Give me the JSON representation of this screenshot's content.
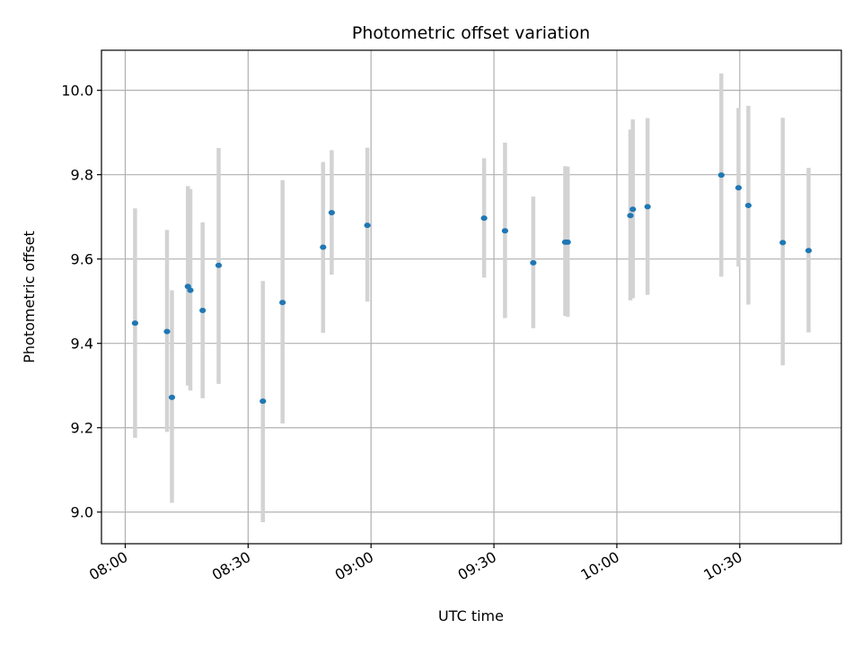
{
  "chart_data": {
    "type": "scatter",
    "title": "Photometric offset variation",
    "xlabel": "UTC time",
    "ylabel": "Photometric offset",
    "xlim_minutes": [
      -5.8,
      174.8
    ],
    "ylim": [
      8.925,
      10.095
    ],
    "grid": true,
    "x_ticks": [
      {
        "minutes": 0,
        "label": "08:00"
      },
      {
        "minutes": 30,
        "label": "08:30"
      },
      {
        "minutes": 60,
        "label": "09:00"
      },
      {
        "minutes": 90,
        "label": "09:30"
      },
      {
        "minutes": 120,
        "label": "10:00"
      },
      {
        "minutes": 150,
        "label": "10:30"
      }
    ],
    "y_ticks": [
      {
        "value": 9.0,
        "label": "9.0"
      },
      {
        "value": 9.2,
        "label": "9.2"
      },
      {
        "value": 9.4,
        "label": "9.4"
      },
      {
        "value": 9.6,
        "label": "9.6"
      },
      {
        "value": 9.8,
        "label": "9.8"
      },
      {
        "value": 10.0,
        "label": "10.0"
      }
    ],
    "marker_color": "#1f77b4",
    "errorbar_color": "#d3d3d3",
    "points": [
      {
        "minutes": 2.4,
        "value": 9.448,
        "low": 9.176,
        "high": 9.72
      },
      {
        "minutes": 10.2,
        "value": 9.428,
        "low": 9.19,
        "high": 9.669
      },
      {
        "minutes": 11.4,
        "value": 9.272,
        "low": 9.022,
        "high": 9.526
      },
      {
        "minutes": 15.3,
        "value": 9.535,
        "low": 9.3,
        "high": 9.773
      },
      {
        "minutes": 15.9,
        "value": 9.526,
        "low": 9.288,
        "high": 9.766
      },
      {
        "minutes": 18.9,
        "value": 9.478,
        "low": 9.27,
        "high": 9.687
      },
      {
        "minutes": 22.8,
        "value": 9.585,
        "low": 9.304,
        "high": 9.863
      },
      {
        "minutes": 33.6,
        "value": 9.263,
        "low": 8.976,
        "high": 9.548
      },
      {
        "minutes": 38.4,
        "value": 9.497,
        "low": 9.21,
        "high": 9.787
      },
      {
        "minutes": 48.3,
        "value": 9.628,
        "low": 9.425,
        "high": 9.83
      },
      {
        "minutes": 50.4,
        "value": 9.71,
        "low": 9.563,
        "high": 9.858
      },
      {
        "minutes": 59.1,
        "value": 9.68,
        "low": 9.499,
        "high": 9.864
      },
      {
        "minutes": 87.6,
        "value": 9.697,
        "low": 9.556,
        "high": 9.839
      },
      {
        "minutes": 92.7,
        "value": 9.667,
        "low": 9.46,
        "high": 9.876
      },
      {
        "minutes": 99.6,
        "value": 9.591,
        "low": 9.436,
        "high": 9.748
      },
      {
        "minutes": 107.4,
        "value": 9.64,
        "low": 9.465,
        "high": 9.82
      },
      {
        "minutes": 108.0,
        "value": 9.64,
        "low": 9.463,
        "high": 9.819
      },
      {
        "minutes": 123.3,
        "value": 9.703,
        "low": 9.502,
        "high": 9.907
      },
      {
        "minutes": 123.9,
        "value": 9.718,
        "low": 9.507,
        "high": 9.931
      },
      {
        "minutes": 127.5,
        "value": 9.724,
        "low": 9.515,
        "high": 9.934
      },
      {
        "minutes": 145.5,
        "value": 9.799,
        "low": 9.558,
        "high": 10.04
      },
      {
        "minutes": 149.7,
        "value": 9.769,
        "low": 9.582,
        "high": 9.958
      },
      {
        "minutes": 152.1,
        "value": 9.727,
        "low": 9.492,
        "high": 9.963
      },
      {
        "minutes": 160.5,
        "value": 9.639,
        "low": 9.348,
        "high": 9.935
      },
      {
        "minutes": 166.8,
        "value": 9.62,
        "low": 9.426,
        "high": 9.816
      }
    ]
  }
}
